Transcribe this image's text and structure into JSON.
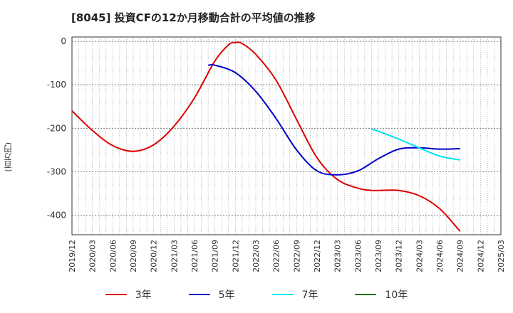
{
  "title": "[8045]  投資CFの12か月移動合計の平均値の推移",
  "chart_data": {
    "type": "line",
    "title": "[8045]  投資CFの12か月移動合計の平均値の推移",
    "ylabel": "(百万円)",
    "xlabel": "",
    "ylim": [
      -445,
      10
    ],
    "yticks": [
      0,
      -100,
      -200,
      -300,
      -400
    ],
    "xticks": [
      "2019/12",
      "2020/03",
      "2020/06",
      "2020/09",
      "2020/12",
      "2021/03",
      "2021/06",
      "2021/09",
      "2021/12",
      "2022/03",
      "2022/06",
      "2022/09",
      "2022/12",
      "2023/03",
      "2023/06",
      "2023/09",
      "2023/12",
      "2024/03",
      "2024/06",
      "2024/09",
      "2024/12",
      "2025/03"
    ],
    "grid": true,
    "legend_position": "bottom",
    "series": [
      {
        "name": "3年",
        "color": "#dd0000",
        "points": [
          [
            "2019/12",
            -160
          ],
          [
            "2020/03",
            -205
          ],
          [
            "2020/06",
            -240
          ],
          [
            "2020/09",
            -253
          ],
          [
            "2020/12",
            -238
          ],
          [
            "2021/03",
            -195
          ],
          [
            "2021/06",
            -130
          ],
          [
            "2021/09",
            -45
          ],
          [
            "2021/11",
            -8
          ],
          [
            "2021/12",
            -3
          ],
          [
            "2022/01",
            -5
          ],
          [
            "2022/03",
            -30
          ],
          [
            "2022/06",
            -90
          ],
          [
            "2022/09",
            -180
          ],
          [
            "2022/12",
            -268
          ],
          [
            "2023/03",
            -318
          ],
          [
            "2023/06",
            -338
          ],
          [
            "2023/08",
            -343
          ],
          [
            "2023/09",
            -343
          ],
          [
            "2023/12",
            -343
          ],
          [
            "2024/03",
            -355
          ],
          [
            "2024/06",
            -385
          ],
          [
            "2024/09",
            -437
          ]
        ]
      },
      {
        "name": "5年",
        "color": "#0000cc",
        "points": [
          [
            "2021/08",
            -55
          ],
          [
            "2021/09",
            -55
          ],
          [
            "2021/12",
            -72
          ],
          [
            "2022/03",
            -115
          ],
          [
            "2022/06",
            -178
          ],
          [
            "2022/09",
            -250
          ],
          [
            "2022/12",
            -298
          ],
          [
            "2023/03",
            -307
          ],
          [
            "2023/06",
            -298
          ],
          [
            "2023/09",
            -270
          ],
          [
            "2023/12",
            -248
          ],
          [
            "2024/03",
            -245
          ],
          [
            "2024/06",
            -248
          ],
          [
            "2024/09",
            -247
          ]
        ]
      },
      {
        "name": "7年",
        "color": "#00e5ee",
        "points": [
          [
            "2023/08",
            -202
          ],
          [
            "2023/09",
            -207
          ],
          [
            "2023/12",
            -225
          ],
          [
            "2024/03",
            -245
          ],
          [
            "2024/06",
            -264
          ],
          [
            "2024/09",
            -273
          ]
        ]
      },
      {
        "name": "10年",
        "color": "#007700",
        "points": []
      }
    ]
  }
}
